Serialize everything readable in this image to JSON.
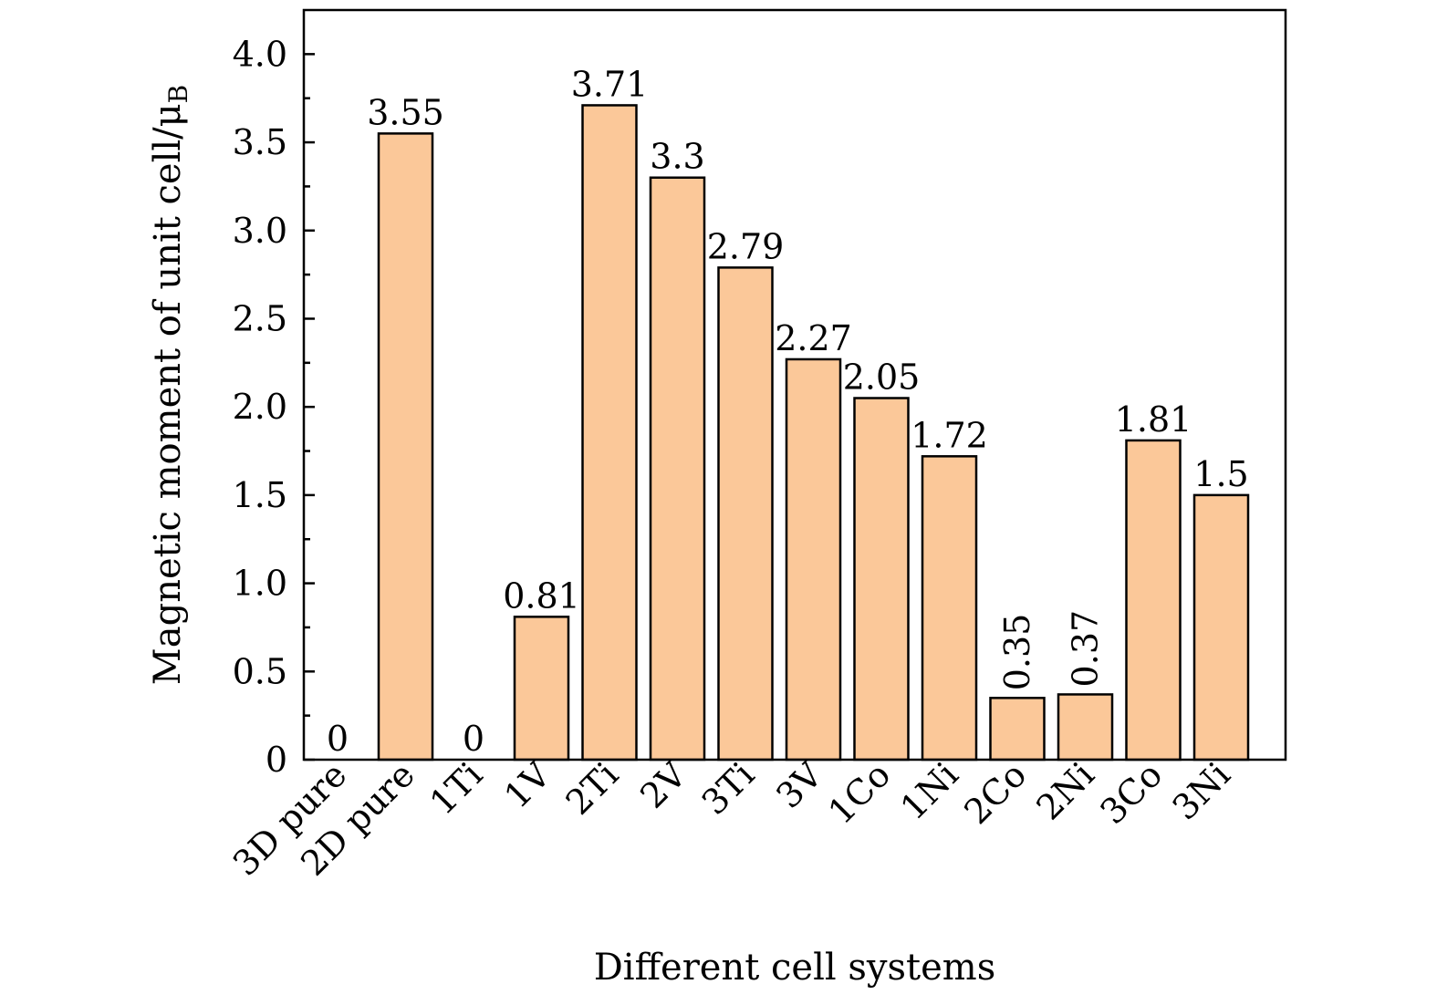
{
  "chart_data": {
    "type": "bar",
    "categories": [
      "3D pure",
      "2D pure",
      "1Ti",
      "1V",
      "2Ti",
      "2V",
      "3Ti",
      "3V",
      "1Co",
      "1Ni",
      "2Co",
      "2Ni",
      "3Co",
      "3Ni"
    ],
    "values": [
      0,
      3.55,
      0,
      0.81,
      3.71,
      3.3,
      2.79,
      2.27,
      2.05,
      1.72,
      0.35,
      0.37,
      1.81,
      1.5
    ],
    "value_labels": [
      "0",
      "3.55",
      "0",
      "0.81",
      "3.71",
      "3.3",
      "2.79",
      "2.27",
      "2.05",
      "1.72",
      "0.35",
      "0.37",
      "1.81",
      "1.5"
    ],
    "vertical_value_labels": [
      "0.35",
      "0.37"
    ],
    "xlabel": "Different cell systems",
    "ylabel": {
      "main": "Magnetic moment of unit cell/",
      "unit": "μ",
      "unit_subscript": "B"
    },
    "ylim": [
      0,
      4.25
    ],
    "yticks": [
      0,
      0.5,
      1.0,
      1.5,
      2.0,
      2.5,
      3.0,
      3.5,
      4.0
    ],
    "ytick_labels": [
      "0",
      "0.5",
      "1.0",
      "1.5",
      "2.0",
      "2.5",
      "3.0",
      "3.5",
      "4.0"
    ],
    "grid": false,
    "legend": "none",
    "bar_color": "#fbc899",
    "bar_edge_color": "#000000"
  }
}
